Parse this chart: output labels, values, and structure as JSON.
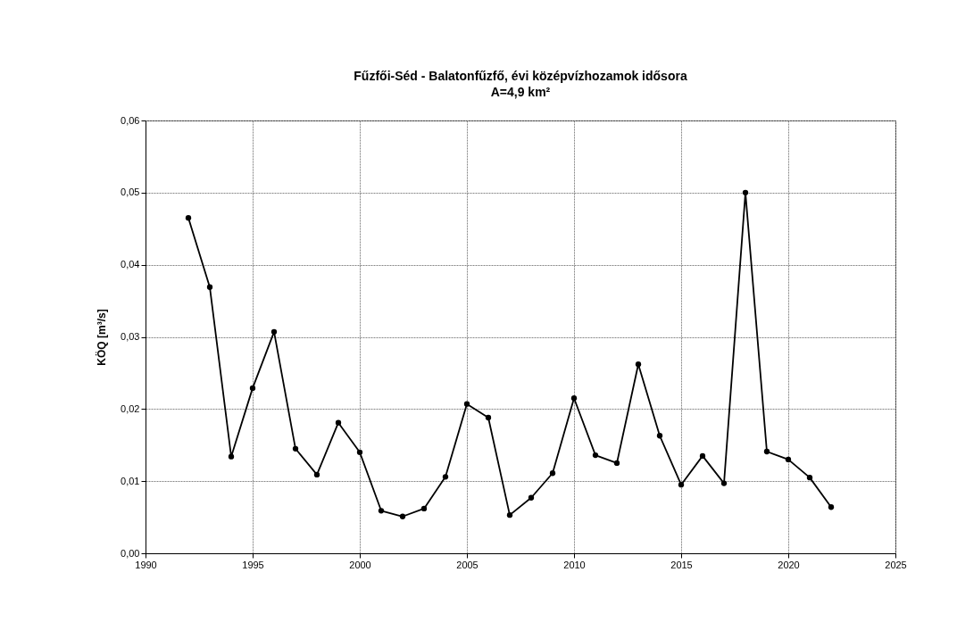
{
  "chart_data": {
    "type": "line",
    "title": [
      "Fűzfői-Séd - Balatonfűzfő, évi középvízhozamok idősora",
      "A=4,9 km²"
    ],
    "ylabel": "KÖQ [m³/s]",
    "x": [
      1992,
      1993,
      1994,
      1995,
      1996,
      1997,
      1998,
      1999,
      2000,
      2001,
      2002,
      2003,
      2004,
      2005,
      2006,
      2007,
      2008,
      2009,
      2010,
      2011,
      2012,
      2013,
      2014,
      2015,
      2016,
      2017,
      2018,
      2019,
      2020,
      2021,
      2022
    ],
    "series": [
      {
        "color": "#000000",
        "values": [
          0.0465,
          0.0369,
          0.0134,
          0.0229,
          0.0307,
          0.0145,
          0.0109,
          0.0181,
          0.014,
          0.0059,
          0.0051,
          0.0062,
          0.0106,
          0.0207,
          0.0188,
          0.0053,
          0.0077,
          0.0111,
          0.0215,
          0.0136,
          0.0125,
          0.0262,
          0.0163,
          0.0095,
          0.0135,
          0.0097,
          0.05,
          0.0141,
          0.013,
          0.0105,
          0.0064
        ]
      }
    ],
    "xlim": [
      1990,
      2025
    ],
    "xticks": [
      1990,
      1995,
      2000,
      2005,
      2010,
      2015,
      2020,
      2025
    ],
    "ylim": [
      0,
      0.06
    ],
    "yticks": [
      {
        "value": 0,
        "label": "0,00"
      },
      {
        "value": 0.01,
        "label": "0,01"
      },
      {
        "value": 0.02,
        "label": "0,02"
      },
      {
        "value": 0.03,
        "label": "0,03"
      },
      {
        "value": 0.04,
        "label": "0,04"
      },
      {
        "value": 0.05,
        "label": "0,05"
      },
      {
        "value": 0.06,
        "label": "0,06"
      }
    ],
    "grid": true,
    "marker": "circle",
    "line_style": "solid"
  }
}
